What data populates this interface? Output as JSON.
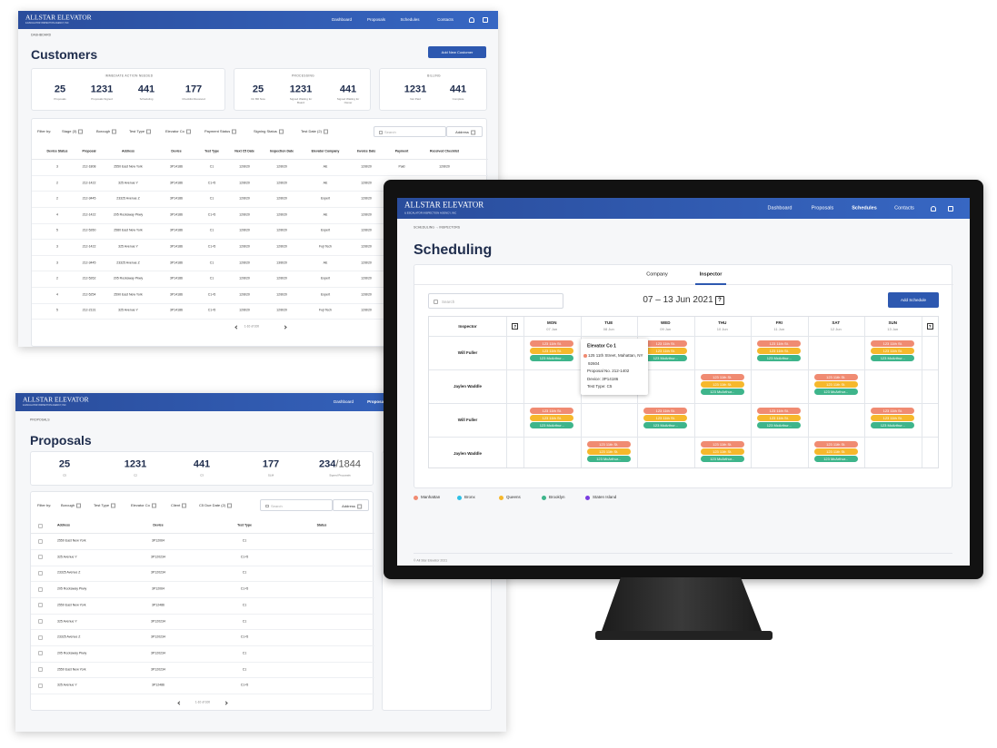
{
  "brand": {
    "name": "ALLSTAR ELEVATOR",
    "tagline": "& ESCALATOR INSPECTION AGENCY, INC"
  },
  "customers": {
    "nav": [
      "Dashboard",
      "Proposals",
      "Schedules",
      "Contacts"
    ],
    "breadcrumb": "DASHBOARD",
    "title": "Customers",
    "button": "Add New Customer",
    "stat_groups": [
      {
        "heading": "IMMEDIATE ACTION NEEDED",
        "stats": [
          {
            "value": 25,
            "label": "Proposals"
          },
          {
            "value": 1231,
            "label": "Proposals Signed"
          },
          {
            "value": 441,
            "label": "Scheduling"
          },
          {
            "value": 177,
            "label": "Checklist Received"
          }
        ]
      },
      {
        "heading": "PROCESSING",
        "stats": [
          {
            "value": 25,
            "label": "On Bill Now"
          },
          {
            "value": 1231,
            "label": "Signed Waiting for Board"
          },
          {
            "value": 441,
            "label": "Signed Waiting for Owner"
          }
        ]
      },
      {
        "heading": "BILLING",
        "stats": [
          {
            "value": 1231,
            "label": "Net Paid"
          },
          {
            "value": 441,
            "label": "Complete"
          }
        ]
      }
    ],
    "filter_label": "Filter by:",
    "filters": [
      "Stage (3)",
      "Borough",
      "Test Type",
      "Elevator Co",
      "Payment Status",
      "Signing Status",
      "Test Date (2)"
    ],
    "search": "Search",
    "address": "Address",
    "columns": [
      "Device Status",
      "Proposal",
      "Address",
      "Device",
      "Test Type",
      "Next C5 Date",
      "Inspection Date",
      "Elevator Company",
      "Invoice Date",
      "Payment",
      "Received Checklist"
    ],
    "rows": [
      [
        3,
        "212-1808",
        "2550 East New York",
        "3P14186",
        "C1",
        "12/8/20",
        "12/8/20",
        "AE",
        "12/8/20",
        "Paid",
        "12/8/20"
      ],
      [
        2,
        "212-1422",
        "325 Avenue Y",
        "3P14186",
        "C1+5",
        "12/8/20",
        "12/8/20",
        "AE",
        "12/8/20"
      ],
      [
        2,
        "212-3445",
        "23325 Avenue Z",
        "3P14186",
        "C1",
        "12/8/20",
        "12/8/20",
        "Expert",
        "12/8/20"
      ],
      [
        4,
        "212-1422",
        "205 Rockaway Pkwy",
        "3P14186",
        "C1+5",
        "12/8/20",
        "12/8/20",
        "AE",
        "12/8/20"
      ],
      [
        5,
        "212-5260",
        "2580 East New York",
        "3P14186",
        "C1",
        "12/8/20",
        "12/8/20",
        "Expert",
        "12/8/20"
      ],
      [
        3,
        "212-1422",
        "325 Avenue Y",
        "3P14186",
        "C1+5",
        "12/8/20",
        "12/8/20",
        "Fuji Tech",
        "12/8/20"
      ],
      [
        3,
        "212-3445",
        "23325 Avenue Z",
        "3P14186",
        "C1",
        "12/8/20",
        "13/8/20",
        "AE",
        "12/8/20"
      ],
      [
        2,
        "212-5262",
        "205 Rockaway Pkwy",
        "3P14186",
        "C1",
        "12/8/20",
        "12/8/20",
        "Expert",
        "12/8/20"
      ],
      [
        4,
        "212-5254",
        "2590 East New York",
        "3P14186",
        "C1+5",
        "12/8/20",
        "12/8/20",
        "Expert",
        "12/8/20"
      ],
      [
        5,
        "212-2131",
        "325 Avenue Y",
        "3P14186",
        "C1+5",
        "12/8/20",
        "12/8/20",
        "Fuji Tech",
        "12/8/20"
      ]
    ],
    "pagination": "1-10 of 100"
  },
  "proposals": {
    "nav": [
      "Dashboard",
      "Proposals"
    ],
    "active_nav": 1,
    "breadcrumb": "PROPOSALS",
    "title": "Proposals",
    "stats": [
      {
        "value": 25,
        "label": "C5"
      },
      {
        "value": 1231,
        "label": "C2"
      },
      {
        "value": 441,
        "label": "C3"
      },
      {
        "value": 177,
        "label": "SLM"
      }
    ],
    "signed": {
      "value": 234,
      "total": "/1844",
      "label": "Signed Proposals"
    },
    "filter_label": "Filter by:",
    "filters": [
      "Borough",
      "Test Type",
      "Elevator Co",
      "Client",
      "C5 Due Date (2)"
    ],
    "search": "Search",
    "address": "Address",
    "columns": [
      "Address",
      "Device",
      "Test Type",
      "Status"
    ],
    "rows": [
      [
        "2550 East New York",
        "3P12064",
        "C1"
      ],
      [
        "325 Avenue Y",
        "3P120234",
        "C1+5"
      ],
      [
        "23325 Avenue Z",
        "3P120234",
        "C1"
      ],
      [
        "205 Rockaway Pkwy",
        "3P12064",
        "C1+5"
      ],
      [
        "2550 East New York",
        "3P12486",
        "C1"
      ],
      [
        "325 Avenue Y",
        "3P120234",
        "C1"
      ],
      [
        "23325 Avenue Z",
        "3P120234",
        "C1+5"
      ],
      [
        "205 Rockaway Pkwy",
        "3P120234",
        "C1"
      ],
      [
        "2550 East New York",
        "3P120234",
        "C1"
      ],
      [
        "325 Avenue Y",
        "3P12486",
        "C1+5"
      ]
    ],
    "pagination": "1-10 of 100"
  },
  "scheduling": {
    "nav": [
      "Dashboard",
      "Proposals",
      "Schedules",
      "Contacts"
    ],
    "active_nav": 2,
    "breadcrumb": "SCHEDULING → INSPECTORS",
    "title": "Scheduling",
    "tabs": [
      "Company",
      "Inspector"
    ],
    "active_tab": 1,
    "search": "Search",
    "week": "07 – 13 Jun 2021",
    "help": "?",
    "button": "Add Schedule",
    "inspector_header": "Inspector",
    "days": [
      {
        "day": "MON",
        "date": "07 Jun"
      },
      {
        "day": "TUE",
        "date": "08 Jun"
      },
      {
        "day": "WED",
        "date": "09 Jun"
      },
      {
        "day": "THU",
        "date": "10 Jun"
      },
      {
        "day": "FRI",
        "date": "11 Jun"
      },
      {
        "day": "SAT",
        "date": "12 Jun"
      },
      {
        "day": "SUN",
        "date": "13 Jun"
      }
    ],
    "pills": [
      {
        "label": "123 11th St.",
        "color": "#f08b72"
      },
      {
        "label": "123 11th St.",
        "color": "#f6b82c"
      },
      {
        "label": "123 McArthur...",
        "color": "#3eb58b"
      }
    ],
    "rows": [
      {
        "inspector": "Will Fuller",
        "days": [
          0,
          2,
          4,
          6
        ]
      },
      {
        "inspector": "Jaylen Waddle",
        "days": [
          3,
          5
        ]
      },
      {
        "inspector": "Will Fuller",
        "days": [
          0,
          2,
          4,
          6
        ]
      },
      {
        "inspector": "Jaylen Waddle",
        "days": [
          1,
          3,
          5
        ]
      }
    ],
    "popover": {
      "title": "Elevator Co 1",
      "address": "125 11th Street, Mahattan, NY 92604",
      "proposal": "Proposal No. 212-1402",
      "device": "Device: 3P14186",
      "test_type": "Test Type: C5",
      "color": "#f08b72"
    },
    "legend": [
      {
        "name": "Manhattan",
        "color": "#f08b72"
      },
      {
        "name": "Bronx",
        "color": "#2ec0e6"
      },
      {
        "name": "Queens",
        "color": "#f6b82c"
      },
      {
        "name": "Brooklyn",
        "color": "#3eb58b"
      },
      {
        "name": "Staten Island",
        "color": "#7a3de0"
      }
    ],
    "footer": "© All Star Elevator 2021"
  }
}
